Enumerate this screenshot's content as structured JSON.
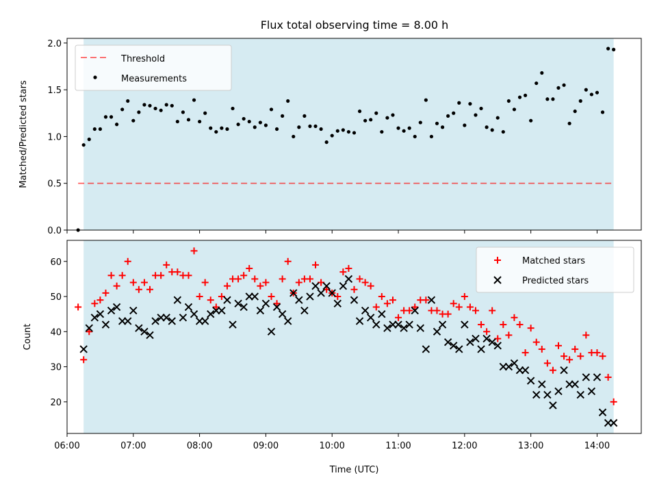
{
  "title": "Flux total observing time = 8.00 h",
  "colors": {
    "shade": "#add8e6",
    "threshold": "#ff0000",
    "measurement": "#000000",
    "matched": "#ff0000",
    "predicted": "#000000"
  },
  "chart_data": [
    {
      "type": "scatter",
      "ylabel": "Matched/Predicted stars",
      "ylim": [
        0,
        2.05
      ],
      "xlim": [
        "06:00",
        "14:40"
      ],
      "y_ticks": [
        "0.0",
        "0.5",
        "1.0",
        "1.5",
        "2.0"
      ],
      "shaded_span": [
        "06:15",
        "14:15"
      ],
      "legend": {
        "placement": "top-left",
        "entries": [
          "Threshold",
          "Measurements"
        ]
      },
      "threshold": {
        "name": "Threshold",
        "value": 0.5,
        "x_range": [
          "06:10",
          "14:15"
        ]
      },
      "series": [
        {
          "name": "Measurements",
          "x": [
            "06:10",
            "06:15",
            "06:20",
            "06:25",
            "06:30",
            "06:35",
            "06:40",
            "06:45",
            "06:50",
            "06:55",
            "07:00",
            "07:05",
            "07:10",
            "07:15",
            "07:20",
            "07:25",
            "07:30",
            "07:35",
            "07:40",
            "07:45",
            "07:50",
            "07:55",
            "08:00",
            "08:05",
            "08:10",
            "08:15",
            "08:20",
            "08:25",
            "08:30",
            "08:35",
            "08:40",
            "08:45",
            "08:50",
            "08:55",
            "09:00",
            "09:05",
            "09:10",
            "09:15",
            "09:20",
            "09:25",
            "09:30",
            "09:35",
            "09:40",
            "09:45",
            "09:50",
            "09:55",
            "10:00",
            "10:05",
            "10:10",
            "10:15",
            "10:20",
            "10:25",
            "10:30",
            "10:35",
            "10:40",
            "10:45",
            "10:50",
            "10:55",
            "11:00",
            "11:05",
            "11:10",
            "11:15",
            "11:20",
            "11:25",
            "11:30",
            "11:35",
            "11:40",
            "11:45",
            "11:50",
            "11:55",
            "12:00",
            "12:05",
            "12:10",
            "12:15",
            "12:20",
            "12:25",
            "12:30",
            "12:35",
            "12:40",
            "12:45",
            "12:50",
            "12:55",
            "13:00",
            "13:05",
            "13:10",
            "13:15",
            "13:20",
            "13:25",
            "13:30",
            "13:35",
            "13:40",
            "13:45",
            "13:50",
            "13:55",
            "14:00",
            "14:05",
            "14:10",
            "14:15"
          ],
          "y": [
            0.0,
            0.91,
            0.97,
            1.08,
            1.08,
            1.21,
            1.21,
            1.13,
            1.29,
            1.38,
            1.17,
            1.26,
            1.34,
            1.33,
            1.3,
            1.28,
            1.34,
            1.33,
            1.16,
            1.26,
            1.18,
            1.39,
            1.16,
            1.25,
            1.09,
            1.05,
            1.09,
            1.08,
            1.3,
            1.13,
            1.19,
            1.16,
            1.1,
            1.15,
            1.12,
            1.29,
            1.08,
            1.22,
            1.38,
            1.0,
            1.1,
            1.22,
            1.11,
            1.11,
            1.08,
            0.94,
            1.01,
            1.06,
            1.07,
            1.05,
            1.04,
            1.27,
            1.17,
            1.18,
            1.25,
            1.05,
            1.2,
            1.23,
            1.09,
            1.06,
            1.09,
            1.0,
            1.15,
            1.39,
            1.0,
            1.14,
            1.1,
            1.22,
            1.25,
            1.36,
            1.12,
            1.35,
            1.23,
            1.3,
            1.1,
            1.07,
            1.2,
            1.05,
            1.38,
            1.29,
            1.42,
            1.44,
            1.17,
            1.57,
            1.68,
            1.4,
            1.4,
            1.52,
            1.55,
            1.14,
            1.27,
            1.38,
            1.5,
            1.45,
            1.47,
            1.26,
            1.94,
            1.93
          ]
        }
      ]
    },
    {
      "type": "scatter",
      "ylabel": "Count",
      "xlabel": "Time (UTC)",
      "ylim": [
        11,
        66
      ],
      "xlim": [
        "06:00",
        "14:40"
      ],
      "x_ticks": [
        "06:00",
        "07:00",
        "08:00",
        "09:00",
        "10:00",
        "11:00",
        "12:00",
        "13:00",
        "14:00"
      ],
      "y_ticks": [
        "20",
        "30",
        "40",
        "50",
        "60"
      ],
      "shaded_span": [
        "06:15",
        "14:15"
      ],
      "legend": {
        "placement": "top-right",
        "entries": [
          "Matched stars",
          "Predicted stars"
        ]
      },
      "series": [
        {
          "name": "Matched stars",
          "x": [
            "06:10",
            "06:15",
            "06:20",
            "06:25",
            "06:30",
            "06:35",
            "06:40",
            "06:45",
            "06:50",
            "06:55",
            "07:00",
            "07:05",
            "07:10",
            "07:15",
            "07:20",
            "07:25",
            "07:30",
            "07:35",
            "07:40",
            "07:45",
            "07:50",
            "07:55",
            "08:00",
            "08:05",
            "08:10",
            "08:15",
            "08:20",
            "08:25",
            "08:30",
            "08:35",
            "08:40",
            "08:45",
            "08:50",
            "08:55",
            "09:00",
            "09:05",
            "09:10",
            "09:15",
            "09:20",
            "09:25",
            "09:30",
            "09:35",
            "09:40",
            "09:45",
            "09:50",
            "09:55",
            "10:00",
            "10:05",
            "10:10",
            "10:15",
            "10:20",
            "10:25",
            "10:30",
            "10:35",
            "10:40",
            "10:45",
            "10:50",
            "10:55",
            "11:00",
            "11:05",
            "11:10",
            "11:15",
            "11:20",
            "11:25",
            "11:30",
            "11:35",
            "11:40",
            "11:45",
            "11:50",
            "11:55",
            "12:00",
            "12:05",
            "12:10",
            "12:15",
            "12:20",
            "12:25",
            "12:30",
            "12:35",
            "12:40",
            "12:45",
            "12:50",
            "12:55",
            "13:00",
            "13:05",
            "13:10",
            "13:15",
            "13:20",
            "13:25",
            "13:30",
            "13:35",
            "13:40",
            "13:45",
            "13:50",
            "13:55",
            "14:00",
            "14:05",
            "14:10",
            "14:15"
          ],
          "y": [
            47,
            32,
            40,
            48,
            49,
            51,
            56,
            53,
            56,
            60,
            54,
            52,
            54,
            52,
            56,
            56,
            59,
            57,
            57,
            56,
            56,
            63,
            50,
            54,
            49,
            47,
            50,
            53,
            55,
            55,
            56,
            58,
            55,
            53,
            54,
            50,
            48,
            55,
            60,
            51,
            54,
            55,
            55,
            59,
            54,
            52,
            51,
            50,
            57,
            58,
            52,
            55,
            54,
            53,
            47,
            50,
            48,
            49,
            44,
            46,
            46,
            47,
            49,
            49,
            46,
            46,
            45,
            45,
            48,
            47,
            50,
            47,
            46,
            42,
            40,
            46,
            38,
            42,
            39,
            44,
            42,
            34,
            41,
            37,
            35,
            31,
            29,
            36,
            33,
            32,
            35,
            33,
            39,
            34,
            34,
            33,
            27,
            20
          ]
        },
        {
          "name": "Predicted stars",
          "x": [
            "06:15",
            "06:20",
            "06:25",
            "06:30",
            "06:35",
            "06:40",
            "06:45",
            "06:50",
            "06:55",
            "07:00",
            "07:05",
            "07:10",
            "07:15",
            "07:20",
            "07:25",
            "07:30",
            "07:35",
            "07:40",
            "07:45",
            "07:50",
            "07:55",
            "08:00",
            "08:05",
            "08:10",
            "08:15",
            "08:20",
            "08:25",
            "08:30",
            "08:35",
            "08:40",
            "08:45",
            "08:50",
            "08:55",
            "09:00",
            "09:05",
            "09:10",
            "09:15",
            "09:20",
            "09:25",
            "09:30",
            "09:35",
            "09:40",
            "09:45",
            "09:50",
            "09:55",
            "10:00",
            "10:05",
            "10:10",
            "10:15",
            "10:20",
            "10:25",
            "10:30",
            "10:35",
            "10:40",
            "10:45",
            "10:50",
            "10:55",
            "11:00",
            "11:05",
            "11:10",
            "11:15",
            "11:20",
            "11:25",
            "11:30",
            "11:35",
            "11:40",
            "11:45",
            "11:50",
            "11:55",
            "12:00",
            "12:05",
            "12:10",
            "12:15",
            "12:20",
            "12:25",
            "12:30",
            "12:35",
            "12:40",
            "12:45",
            "12:50",
            "12:55",
            "13:00",
            "13:05",
            "13:10",
            "13:15",
            "13:20",
            "13:25",
            "13:30",
            "13:35",
            "13:40",
            "13:45",
            "13:50",
            "13:55",
            "14:00",
            "14:05",
            "14:10",
            "14:15"
          ],
          "y": [
            35,
            41,
            44,
            45,
            42,
            46,
            47,
            43,
            43,
            46,
            41,
            40,
            39,
            43,
            44,
            44,
            43,
            49,
            44,
            47,
            45,
            43,
            43,
            45,
            46,
            46,
            49,
            42,
            48,
            47,
            50,
            50,
            46,
            48,
            40,
            47,
            45,
            43,
            51,
            49,
            46,
            50,
            53,
            51,
            53,
            51,
            48,
            53,
            55,
            49,
            43,
            46,
            44,
            42,
            45,
            41,
            42,
            42,
            41,
            42,
            46,
            41,
            35,
            49,
            40,
            42,
            37,
            36,
            35,
            42,
            37,
            38,
            35,
            38,
            37,
            36,
            30,
            30,
            31,
            29,
            29,
            26,
            22,
            25,
            22,
            19,
            23,
            29,
            25,
            25,
            22,
            27,
            23,
            27,
            17,
            14,
            14
          ]
        }
      ]
    }
  ]
}
